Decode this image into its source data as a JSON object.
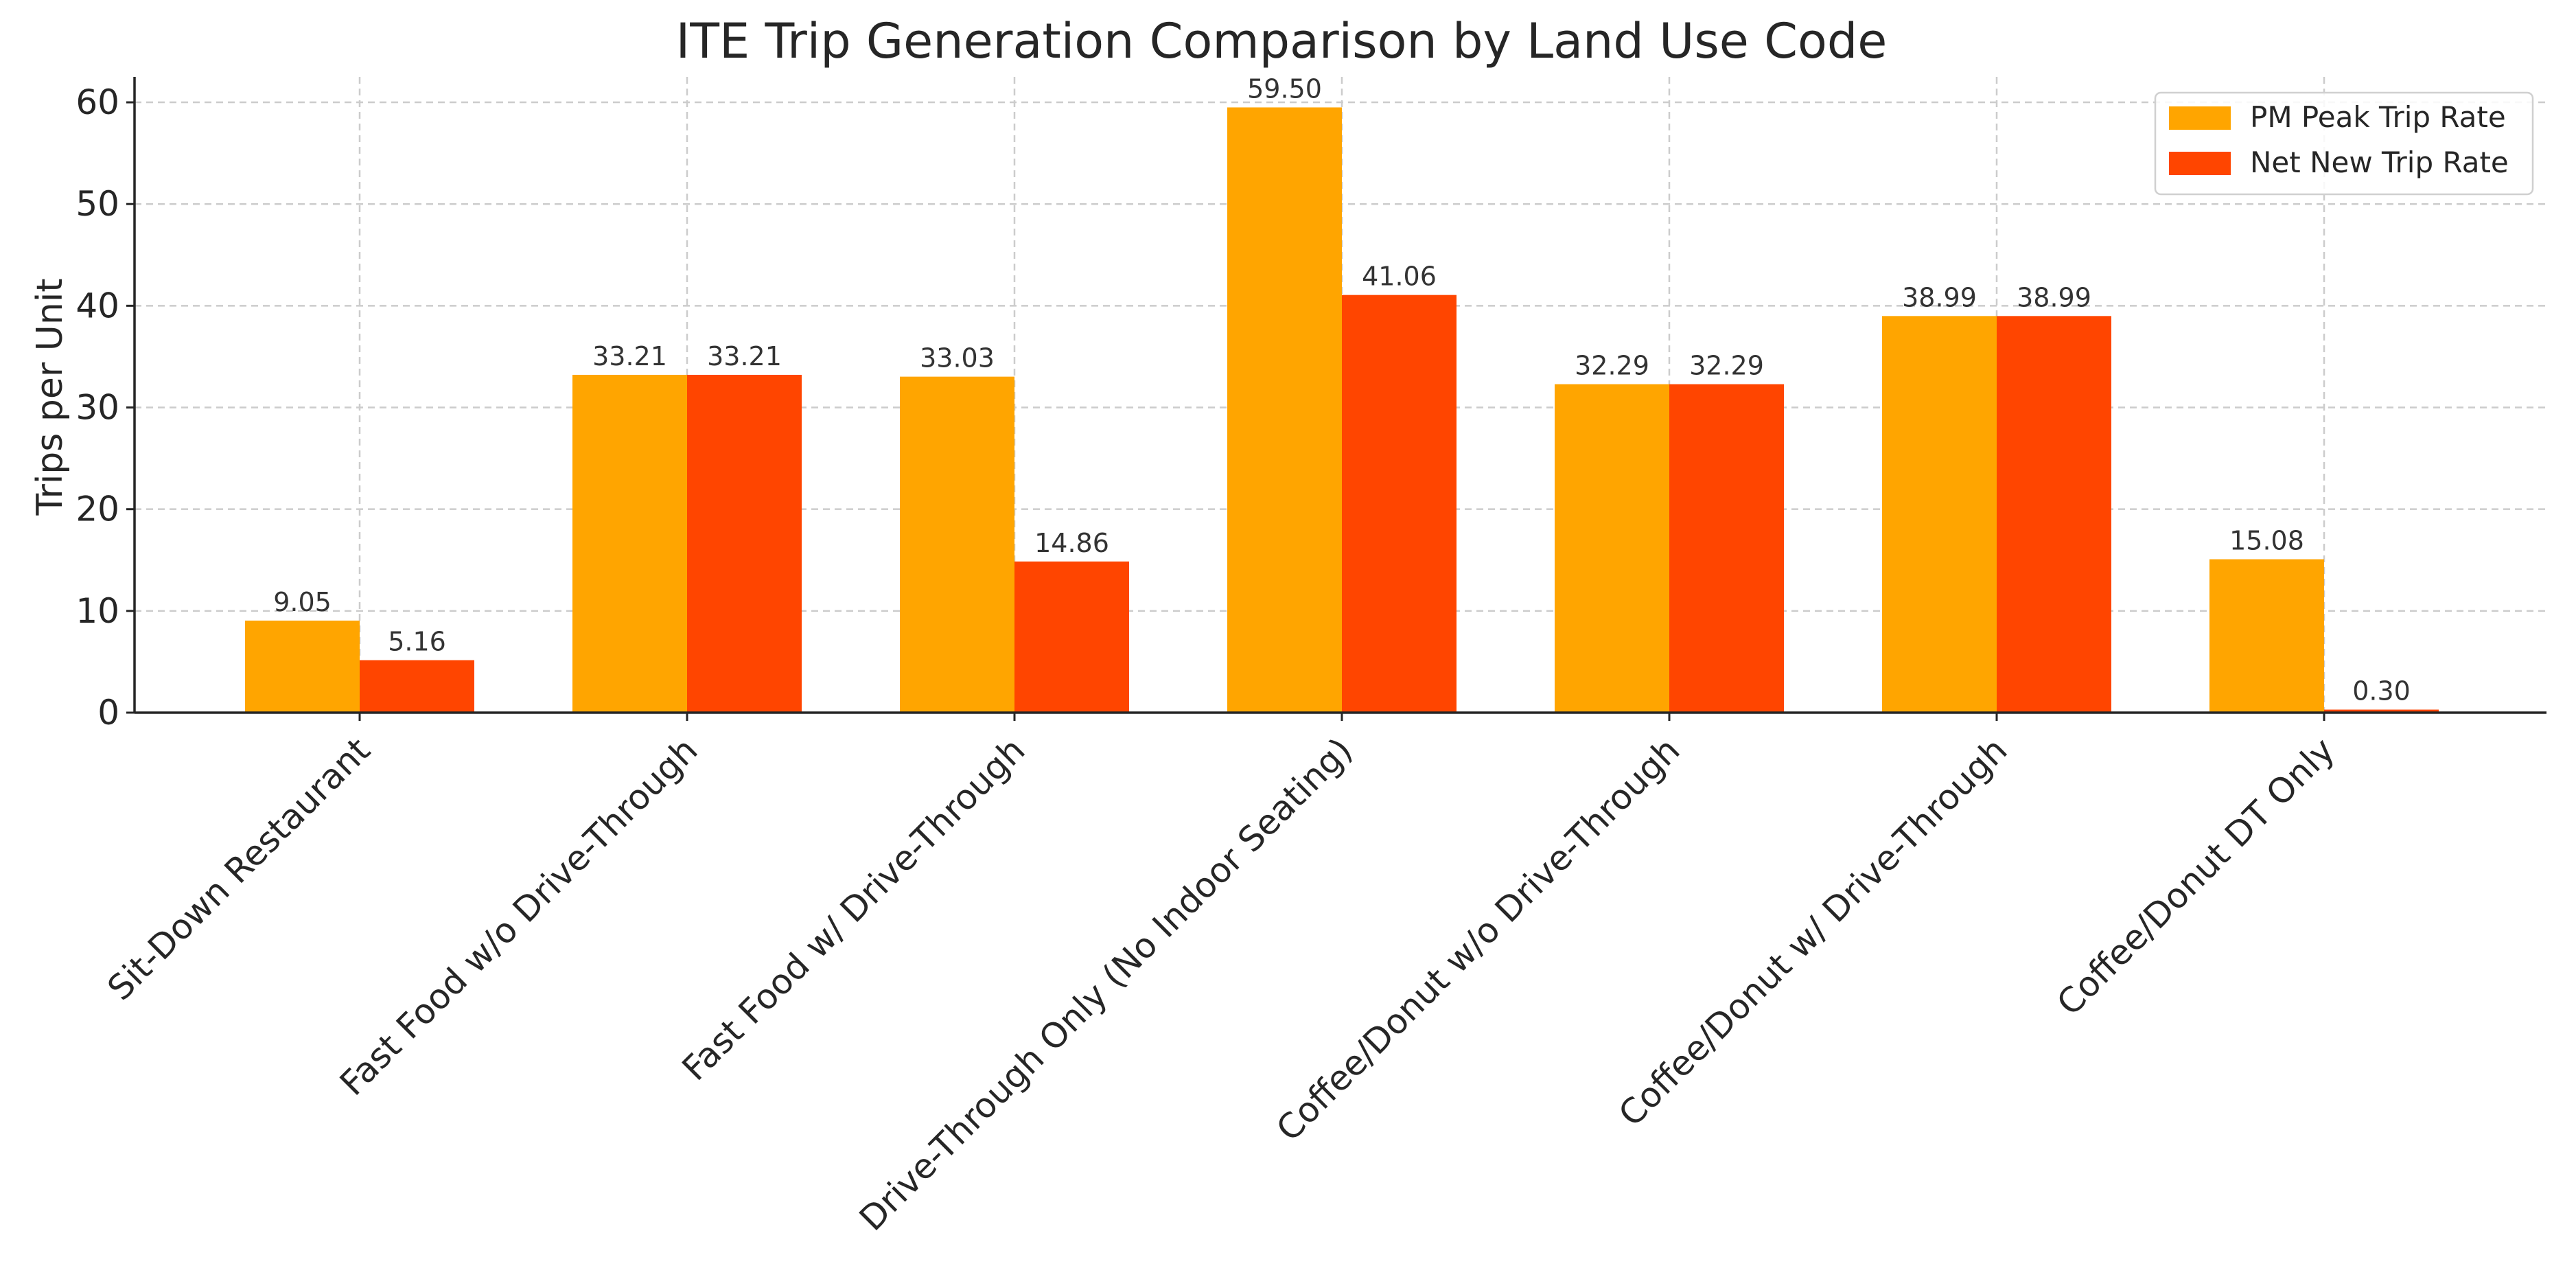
{
  "chart_data": {
    "type": "bar",
    "title": "ITE Trip Generation Comparison by Land Use Code",
    "xlabel": "",
    "ylabel": "Trips per Unit",
    "ylim": [
      0,
      62.5
    ],
    "yticks": [
      0,
      10,
      20,
      30,
      40,
      50,
      60
    ],
    "grid": true,
    "legend_position": "top-right",
    "categories": [
      "Sit-Down Restaurant",
      "Fast Food w/o Drive-Through",
      "Fast Food w/ Drive-Through",
      "Drive-Through Only (No Indoor Seating)",
      "Coffee/Donut w/o Drive-Through",
      "Coffee/Donut w/ Drive-Through",
      "Coffee/Donut DT Only"
    ],
    "series": [
      {
        "name": "PM Peak Trip Rate",
        "color": "#FFA500",
        "values": [
          9.05,
          33.21,
          33.03,
          59.5,
          32.29,
          38.99,
          15.08
        ],
        "labels": [
          "9.05",
          "33.21",
          "33.03",
          "59.50",
          "32.29",
          "38.99",
          "15.08"
        ]
      },
      {
        "name": "Net New Trip Rate",
        "color": "#FF4500",
        "values": [
          5.16,
          33.21,
          14.86,
          41.06,
          32.29,
          38.99,
          0.3
        ],
        "labels": [
          "5.16",
          "33.21",
          "14.86",
          "41.06",
          "32.29",
          "38.99",
          "0.30"
        ]
      }
    ]
  }
}
